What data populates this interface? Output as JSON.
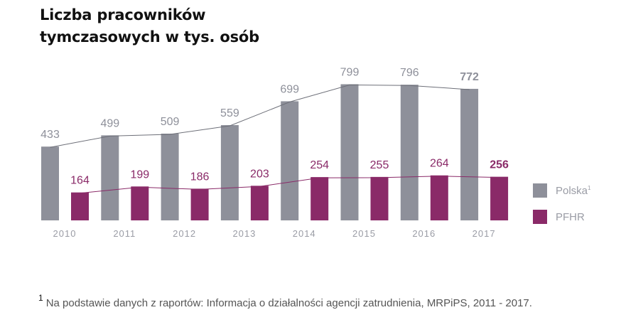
{
  "title_lines": [
    "Liczba pracowników",
    "tymczasowych w tys. osób"
  ],
  "chart_data": {
    "type": "bar",
    "title": "Liczba pracowników tymczasowych w tys. osób",
    "categories": [
      "2010",
      "2011",
      "2012",
      "2013",
      "2014",
      "2015",
      "2016",
      "2017"
    ],
    "series": [
      {
        "name": "Polska",
        "values": [
          433,
          499,
          509,
          559,
          699,
          799,
          796,
          772
        ],
        "color": "#8e909a",
        "label_color": "#8e909a"
      },
      {
        "name": "PFHR",
        "values": [
          164,
          199,
          186,
          203,
          254,
          255,
          264,
          256
        ],
        "color": "#8a2a68",
        "label_color": "#8a2a68"
      }
    ],
    "trend_lines": true,
    "highlight_last_label_bold": true,
    "legend_position": "right",
    "grid": false
  },
  "legend": [
    {
      "label": "Polska",
      "sup": "1",
      "color": "#8e909a"
    },
    {
      "label": "PFHR",
      "sup": "",
      "color": "#8a2a68"
    }
  ],
  "footnote": {
    "marker": "1",
    "text": "Na podstawie danych z raportów: Informacja o działalności agencji zatrudnienia, MRPiPS, 2011 - 2017."
  }
}
